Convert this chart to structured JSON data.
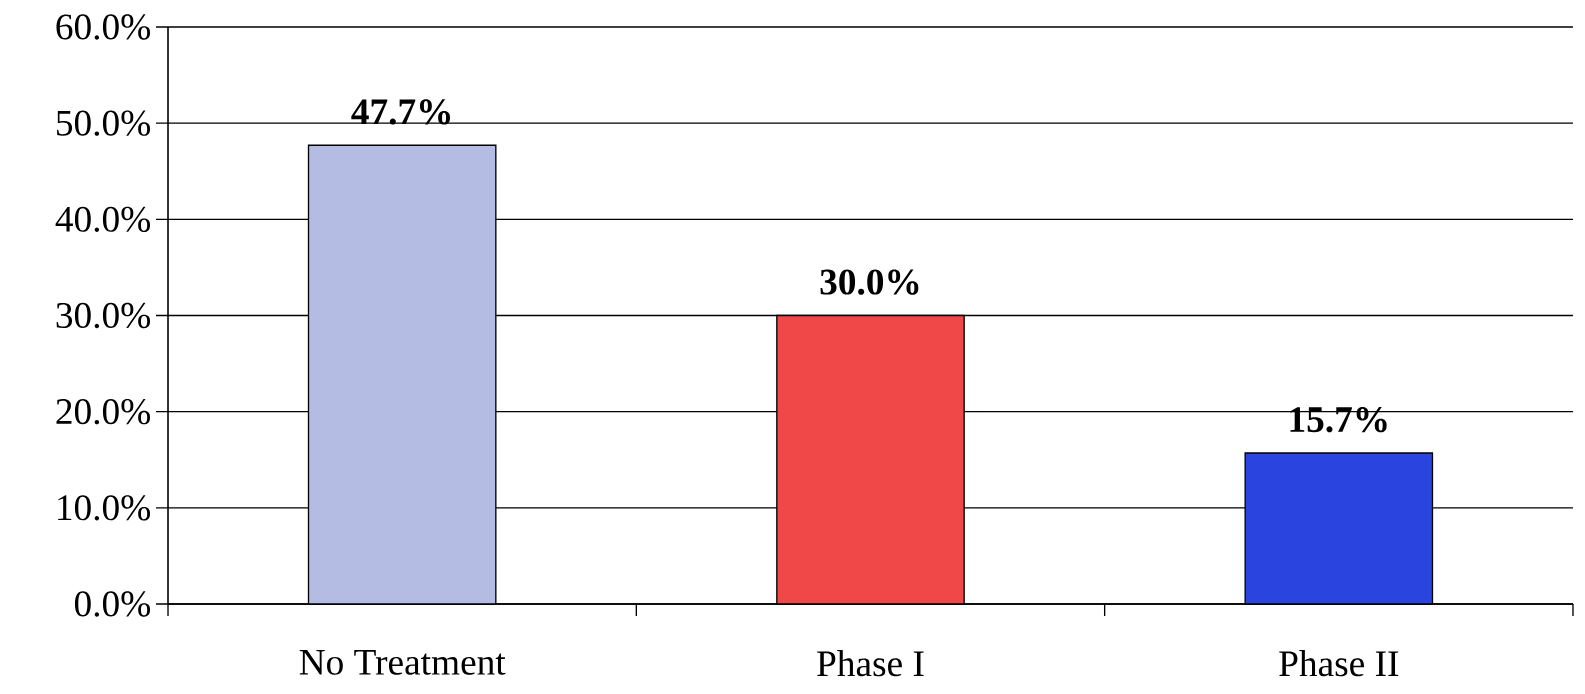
{
  "chart_data": {
    "type": "bar",
    "categories": [
      "No Treatment",
      "Phase I",
      "Phase II"
    ],
    "values": [
      47.7,
      30.0,
      15.7
    ],
    "colors": [
      "#b4bce4",
      "#f04848",
      "#2a44e0"
    ],
    "value_labels": [
      "47.7%",
      "30.0%",
      "15.7%"
    ],
    "ylim": [
      0,
      60
    ],
    "yticks": [
      {
        "value": 0,
        "label": "0.0%"
      },
      {
        "value": 10,
        "label": "10.0%"
      },
      {
        "value": 20,
        "label": "20.0%"
      },
      {
        "value": 30,
        "label": "30.0%"
      },
      {
        "value": 40,
        "label": "40.0%"
      },
      {
        "value": 50,
        "label": "50.0%"
      },
      {
        "value": 60,
        "label": "60.0%"
      }
    ],
    "grid": "y"
  }
}
